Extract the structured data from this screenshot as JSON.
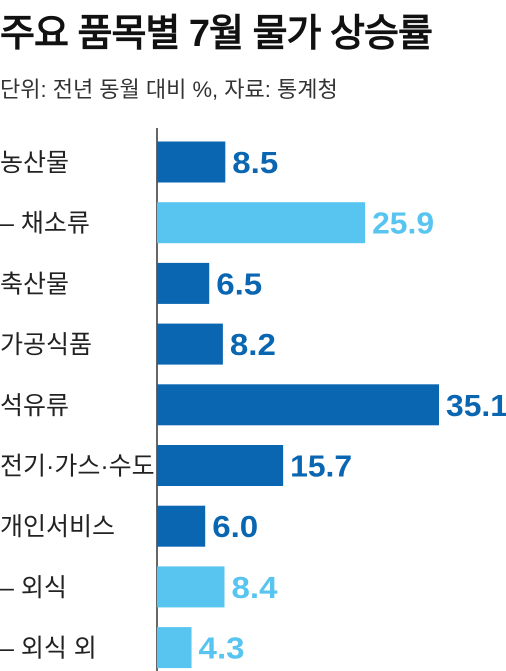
{
  "header": {
    "title": "주요 품목별 7월 물가 상승률",
    "subtitle": "단위: 전년 동월 대비 %, 자료: 통계청"
  },
  "colors": {
    "primary": "#0a66b1",
    "secondary": "#58c4f0",
    "label": "#222222",
    "axis": "#333333"
  },
  "chart_data": {
    "type": "bar",
    "orientation": "horizontal",
    "title": "주요 품목별 7월 물가 상승률",
    "subtitle": "단위: 전년 동월 대비 %, 자료: 통계청",
    "categories": [
      "농산물",
      "– 채소류",
      "축산물",
      "가공식품",
      "석유류",
      "전기·가스·수도",
      "개인서비스",
      "– 외식",
      "– 외식 외"
    ],
    "values": [
      8.5,
      25.9,
      6.5,
      8.2,
      35.1,
      15.7,
      6.0,
      8.4,
      4.3
    ],
    "value_labels": [
      "8.5",
      "25.9",
      "6.5",
      "8.2",
      "35.1",
      "15.7",
      "6.0",
      "8.4",
      "4.3"
    ],
    "subcategory": [
      false,
      true,
      false,
      false,
      false,
      false,
      false,
      true,
      true
    ],
    "xlim": [
      0,
      35.1
    ],
    "grid": false,
    "legend": "none"
  }
}
